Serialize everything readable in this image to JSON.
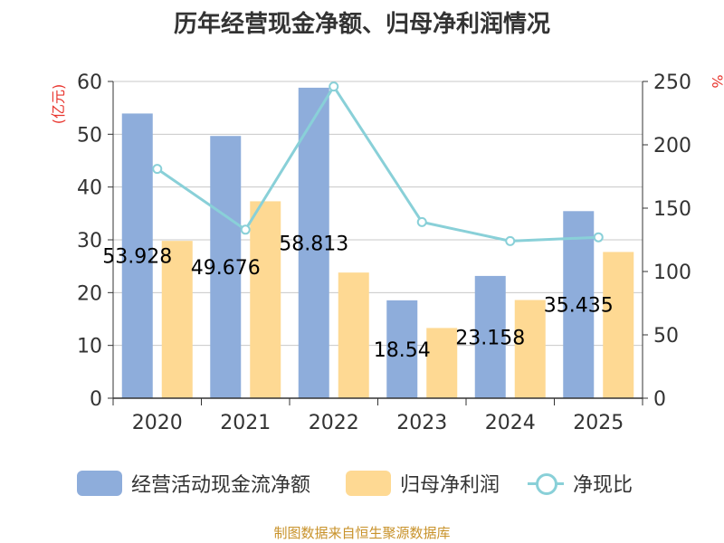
{
  "title": "历年经营现金净额、归母净利润情况",
  "source": "制图数据来自恒生聚源数据库",
  "colors": {
    "ocf_bar": "#8eaddb",
    "profit_bar": "#fed993",
    "ratio_line": "#89d0d8",
    "axis_unit": "#e8352e",
    "gridline": "#c8c8c8",
    "axis": "#333333"
  },
  "legend": [
    {
      "label": "经营活动现金流净额"
    },
    {
      "label": "归母净利润"
    },
    {
      "label": "净现比"
    }
  ],
  "chart_data": {
    "type": "bar",
    "title": "历年经营现金净额、归母净利润情况",
    "categories": [
      "2020",
      "2021",
      "2022",
      "2023",
      "2024",
      "2025"
    ],
    "left_axis": {
      "label": "(亿元)",
      "ylim": [
        0,
        60
      ],
      "ticks": [
        "0",
        "10",
        "20",
        "30",
        "40",
        "50",
        "60"
      ]
    },
    "right_axis": {
      "label": "%",
      "ylim": [
        0,
        250
      ],
      "ticks": [
        "0",
        "50",
        "100",
        "150",
        "200",
        "250"
      ]
    },
    "grid": true,
    "legend_position": "bottom",
    "series": [
      {
        "name": "经营活动现金流净额",
        "type": "bar",
        "axis": "left",
        "values": [
          53.928,
          49.676,
          58.813,
          18.54,
          23.158,
          35.435
        ],
        "labels": [
          "53.928",
          "49.676",
          "58.813",
          "18.54",
          "23.158",
          "35.435"
        ]
      },
      {
        "name": "归母净利润",
        "type": "bar",
        "axis": "left",
        "values": [
          29.8,
          37.3,
          23.8,
          13.3,
          18.6,
          27.7
        ]
      },
      {
        "name": "净现比",
        "type": "line",
        "axis": "right",
        "values": [
          181,
          133,
          246,
          139,
          124,
          127
        ]
      }
    ]
  }
}
